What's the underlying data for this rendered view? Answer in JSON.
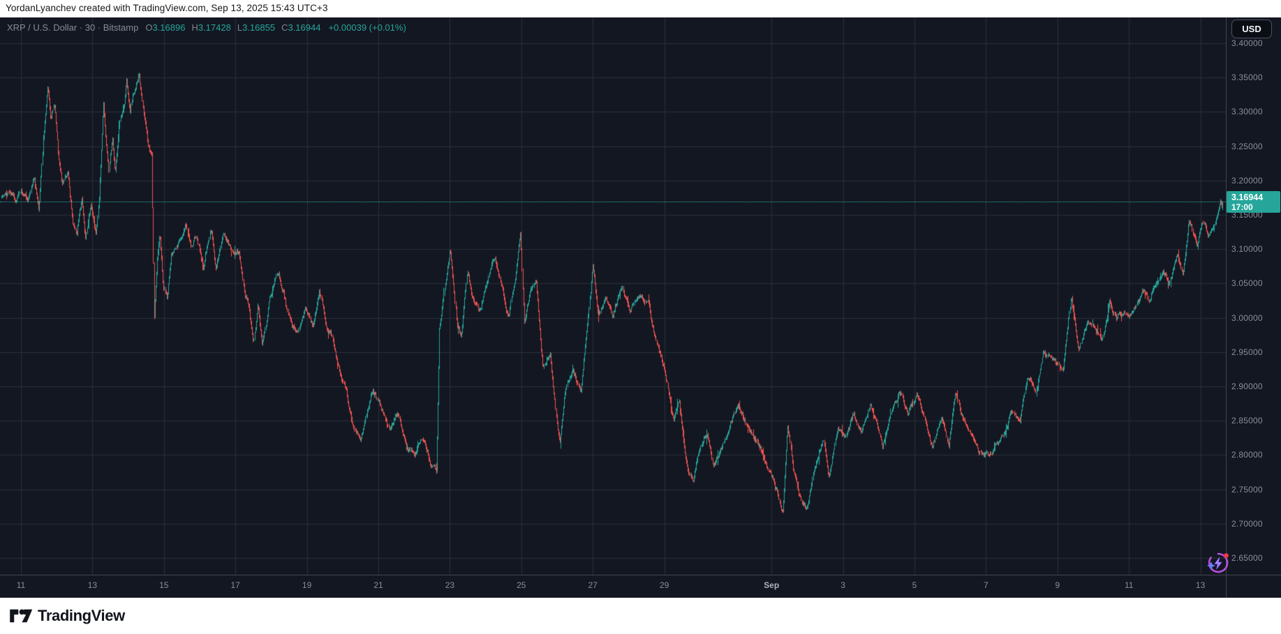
{
  "top_bar": {
    "attribution": "YordanLyanchev created with TradingView.com, Sep 13, 2025 15:43 UTC+3"
  },
  "header": {
    "symbol_line": "XRP / U.S. Dollar · 30 · Bitstamp",
    "ohlc": [
      {
        "k": "O",
        "v": "3.16896"
      },
      {
        "k": "H",
        "v": "3.17428"
      },
      {
        "k": "L",
        "v": "3.16855"
      },
      {
        "k": "C",
        "v": "3.16944"
      }
    ],
    "change": "+0.00039 (+0.01%)"
  },
  "currency_button": {
    "label": "USD"
  },
  "last_price": {
    "value": "3.16944",
    "time": "17:00"
  },
  "price_scale": {
    "labels": [
      "3.40000",
      "3.35000",
      "3.30000",
      "3.25000",
      "3.20000",
      "3.15000",
      "3.10000",
      "3.05000",
      "3.00000",
      "2.95000",
      "2.90000",
      "2.85000",
      "2.80000",
      "2.75000",
      "2.70000",
      "2.65000"
    ]
  },
  "time_scale": {
    "labels": [
      {
        "day": 0,
        "text": "11"
      },
      {
        "day": 2,
        "text": "13"
      },
      {
        "day": 4,
        "text": "15"
      },
      {
        "day": 6,
        "text": "17"
      },
      {
        "day": 8,
        "text": "19"
      },
      {
        "day": 10,
        "text": "21"
      },
      {
        "day": 12,
        "text": "23"
      },
      {
        "day": 14,
        "text": "25"
      },
      {
        "day": 16,
        "text": "27"
      },
      {
        "day": 18,
        "text": "29"
      },
      {
        "day": 21,
        "text": "Sep",
        "emphasis": true
      },
      {
        "day": 23,
        "text": "3"
      },
      {
        "day": 25,
        "text": "5"
      },
      {
        "day": 27,
        "text": "7"
      },
      {
        "day": 29,
        "text": "9"
      },
      {
        "day": 31,
        "text": "11"
      },
      {
        "day": 33,
        "text": "13"
      }
    ]
  },
  "footer": {
    "brand": "TradingView"
  },
  "colors": {
    "up": "#26a69a",
    "down": "#ef5350",
    "background": "#131722",
    "grid": "#2a2f3a",
    "separator": "#434651",
    "axis_text": "#8a8e99",
    "badge": "#26a69a",
    "dotted_line": "#2bb3a3"
  },
  "chart_data": {
    "type": "candlestick",
    "symbol": "XRP / U.S. Dollar",
    "interval": "30",
    "exchange": "Bitstamp",
    "last": {
      "open": 3.16896,
      "high": 3.17428,
      "low": 3.16855,
      "close": 3.16944,
      "change": 0.00039,
      "change_pct": 0.01
    },
    "price_axis_range": [
      2.65,
      3.4
    ],
    "grid_price_step": 0.05,
    "time_range": "Aug 10 12:00 - Sep 13 17:00 (day 0 = Aug 11 00:00)",
    "candles_per_day": 48,
    "t_start": -0.55,
    "t_end": 33.62,
    "seed": 42,
    "day_grid": [
      0,
      2,
      4,
      6,
      8,
      10,
      12,
      14,
      16,
      18,
      21,
      23,
      25,
      27,
      29,
      31,
      33
    ],
    "anchors": [
      [
        -0.55,
        3.175
      ],
      [
        -0.3,
        3.19
      ],
      [
        -0.15,
        3.172
      ],
      [
        0.0,
        3.19
      ],
      [
        0.2,
        3.176
      ],
      [
        0.35,
        3.204
      ],
      [
        0.5,
        3.158
      ],
      [
        0.62,
        3.27
      ],
      [
        0.75,
        3.335
      ],
      [
        0.83,
        3.28
      ],
      [
        0.93,
        3.305
      ],
      [
        1.05,
        3.225
      ],
      [
        1.15,
        3.19
      ],
      [
        1.3,
        3.21
      ],
      [
        1.45,
        3.135
      ],
      [
        1.55,
        3.119
      ],
      [
        1.7,
        3.17
      ],
      [
        1.8,
        3.11
      ],
      [
        1.95,
        3.155
      ],
      [
        2.1,
        3.107
      ],
      [
        2.18,
        3.16
      ],
      [
        2.3,
        3.307
      ],
      [
        2.45,
        3.212
      ],
      [
        2.55,
        3.257
      ],
      [
        2.63,
        3.206
      ],
      [
        2.75,
        3.28
      ],
      [
        2.88,
        3.3
      ],
      [
        2.95,
        3.339
      ],
      [
        3.05,
        3.295
      ],
      [
        3.12,
        3.32
      ],
      [
        3.3,
        3.355
      ],
      [
        3.42,
        3.295
      ],
      [
        3.55,
        3.245
      ],
      [
        3.66,
        3.235
      ],
      [
        3.72,
        3.0
      ],
      [
        3.8,
        3.09
      ],
      [
        3.88,
        3.13
      ],
      [
        3.98,
        3.05
      ],
      [
        4.08,
        3.033
      ],
      [
        4.2,
        3.09
      ],
      [
        4.35,
        3.1
      ],
      [
        4.6,
        3.138
      ],
      [
        4.75,
        3.1
      ],
      [
        4.9,
        3.12
      ],
      [
        5.1,
        3.064
      ],
      [
        5.3,
        3.128
      ],
      [
        5.45,
        3.077
      ],
      [
        5.65,
        3.131
      ],
      [
        5.85,
        3.11
      ],
      [
        6.1,
        3.098
      ],
      [
        6.25,
        3.043
      ],
      [
        6.38,
        3.023
      ],
      [
        6.5,
        2.972
      ],
      [
        6.62,
        3.019
      ],
      [
        6.75,
        2.962
      ],
      [
        6.95,
        3.036
      ],
      [
        7.2,
        3.073
      ],
      [
        7.45,
        3.019
      ],
      [
        7.6,
        2.988
      ],
      [
        7.75,
        2.976
      ],
      [
        7.95,
        3.02
      ],
      [
        8.15,
        2.99
      ],
      [
        8.35,
        3.048
      ],
      [
        8.55,
        2.995
      ],
      [
        8.7,
        2.98
      ],
      [
        8.85,
        2.938
      ],
      [
        9.1,
        2.896
      ],
      [
        9.3,
        2.845
      ],
      [
        9.5,
        2.825
      ],
      [
        9.7,
        2.868
      ],
      [
        9.85,
        2.904
      ],
      [
        10.05,
        2.872
      ],
      [
        10.3,
        2.833
      ],
      [
        10.55,
        2.856
      ],
      [
        10.8,
        2.81
      ],
      [
        11.0,
        2.799
      ],
      [
        11.2,
        2.819
      ],
      [
        11.45,
        2.782
      ],
      [
        11.62,
        2.772
      ],
      [
        11.7,
        2.975
      ],
      [
        11.85,
        3.04
      ],
      [
        12.0,
        3.103
      ],
      [
        12.2,
        2.99
      ],
      [
        12.32,
        2.975
      ],
      [
        12.48,
        3.073
      ],
      [
        12.6,
        3.04
      ],
      [
        12.85,
        3.009
      ],
      [
        13.1,
        3.07
      ],
      [
        13.25,
        3.086
      ],
      [
        13.5,
        3.03
      ],
      [
        13.65,
        2.999
      ],
      [
        13.9,
        3.09
      ],
      [
        13.97,
        3.128
      ],
      [
        14.08,
        2.985
      ],
      [
        14.25,
        3.04
      ],
      [
        14.4,
        3.054
      ],
      [
        14.6,
        2.924
      ],
      [
        14.8,
        2.95
      ],
      [
        14.95,
        2.87
      ],
      [
        15.07,
        2.818
      ],
      [
        15.25,
        2.904
      ],
      [
        15.45,
        2.931
      ],
      [
        15.65,
        2.897
      ],
      [
        15.85,
        3.0
      ],
      [
        16.0,
        3.083
      ],
      [
        16.15,
        2.998
      ],
      [
        16.35,
        3.033
      ],
      [
        16.55,
        3.002
      ],
      [
        16.8,
        3.046
      ],
      [
        17.05,
        3.01
      ],
      [
        17.3,
        3.03
      ],
      [
        17.55,
        3.026
      ],
      [
        17.75,
        2.968
      ],
      [
        18.0,
        2.917
      ],
      [
        18.25,
        2.846
      ],
      [
        18.4,
        2.873
      ],
      [
        18.6,
        2.8
      ],
      [
        18.8,
        2.765
      ],
      [
        19.0,
        2.82
      ],
      [
        19.2,
        2.836
      ],
      [
        19.35,
        2.782
      ],
      [
        19.55,
        2.8
      ],
      [
        19.8,
        2.825
      ],
      [
        20.05,
        2.866
      ],
      [
        20.25,
        2.845
      ],
      [
        20.5,
        2.825
      ],
      [
        20.75,
        2.8
      ],
      [
        21.0,
        2.76
      ],
      [
        21.15,
        2.741
      ],
      [
        21.3,
        2.706
      ],
      [
        21.45,
        2.84
      ],
      [
        21.6,
        2.779
      ],
      [
        21.85,
        2.724
      ],
      [
        22.0,
        2.718
      ],
      [
        22.2,
        2.77
      ],
      [
        22.45,
        2.818
      ],
      [
        22.6,
        2.769
      ],
      [
        22.85,
        2.847
      ],
      [
        23.05,
        2.826
      ],
      [
        23.3,
        2.863
      ],
      [
        23.5,
        2.84
      ],
      [
        23.75,
        2.888
      ],
      [
        23.95,
        2.85
      ],
      [
        24.1,
        2.815
      ],
      [
        24.35,
        2.865
      ],
      [
        24.6,
        2.892
      ],
      [
        24.8,
        2.862
      ],
      [
        25.05,
        2.889
      ],
      [
        25.3,
        2.85
      ],
      [
        25.5,
        2.818
      ],
      [
        25.75,
        2.853
      ],
      [
        25.95,
        2.805
      ],
      [
        26.15,
        2.886
      ],
      [
        26.4,
        2.845
      ],
      [
        26.7,
        2.818
      ],
      [
        26.95,
        2.8
      ],
      [
        27.15,
        2.797
      ],
      [
        27.45,
        2.828
      ],
      [
        27.7,
        2.868
      ],
      [
        27.95,
        2.855
      ],
      [
        28.15,
        2.925
      ],
      [
        28.4,
        2.905
      ],
      [
        28.6,
        2.965
      ],
      [
        28.85,
        2.95
      ],
      [
        29.15,
        2.936
      ],
      [
        29.38,
        3.038
      ],
      [
        29.6,
        2.955
      ],
      [
        29.8,
        2.985
      ],
      [
        30.0,
        2.99
      ],
      [
        30.25,
        2.972
      ],
      [
        30.45,
        3.022
      ],
      [
        30.65,
        3.0
      ],
      [
        31.0,
        3.005
      ],
      [
        31.2,
        3.012
      ],
      [
        31.4,
        3.032
      ],
      [
        31.55,
        3.018
      ],
      [
        31.95,
        3.073
      ],
      [
        32.1,
        3.046
      ],
      [
        32.35,
        3.09
      ],
      [
        32.5,
        3.06
      ],
      [
        32.68,
        3.14
      ],
      [
        32.9,
        3.097
      ],
      [
        33.05,
        3.126
      ],
      [
        33.2,
        3.105
      ],
      [
        33.42,
        3.148
      ],
      [
        33.55,
        3.185
      ],
      [
        33.62,
        3.16944
      ]
    ]
  }
}
